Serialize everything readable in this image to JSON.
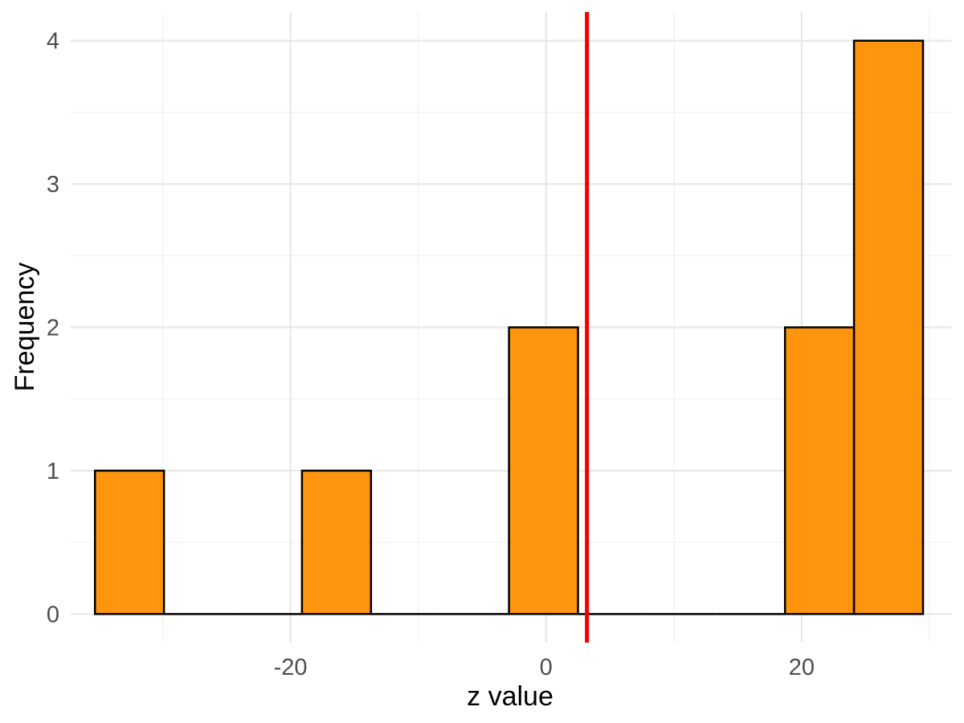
{
  "chart_data": {
    "type": "bar",
    "histogram": true,
    "xlabel": "z value",
    "ylabel": "Frequency",
    "xlim": [
      -37.2,
      31.7
    ],
    "ylim": [
      -0.2,
      4.2
    ],
    "xticks": [
      -20,
      0,
      20
    ],
    "xtick_labels": [
      "-20",
      "0",
      "20"
    ],
    "yticks": [
      0,
      1,
      2,
      3,
      4
    ],
    "ytick_labels": [
      "0",
      "1",
      "2",
      "3",
      "4"
    ],
    "grid": true,
    "bins": [
      {
        "x0": -35.3,
        "x1": -29.9,
        "count": 1
      },
      {
        "x0": -29.9,
        "x1": -24.5,
        "count": 0
      },
      {
        "x0": -24.5,
        "x1": -19.1,
        "count": 0
      },
      {
        "x0": -19.1,
        "x1": -13.7,
        "count": 1
      },
      {
        "x0": -13.7,
        "x1": -8.3,
        "count": 0
      },
      {
        "x0": -8.3,
        "x1": -2.9,
        "count": 0
      },
      {
        "x0": -2.9,
        "x1": 2.5,
        "count": 2
      },
      {
        "x0": 2.5,
        "x1": 7.9,
        "count": 0
      },
      {
        "x0": 7.9,
        "x1": 13.3,
        "count": 0
      },
      {
        "x0": 13.3,
        "x1": 18.7,
        "count": 0
      },
      {
        "x0": 18.7,
        "x1": 24.1,
        "count": 2
      },
      {
        "x0": 24.1,
        "x1": 29.5,
        "count": 4
      }
    ],
    "vline": {
      "x": 3.2,
      "color": "#ee0000"
    },
    "colors": {
      "bar_fill": "#ff940e",
      "bar_stroke": "#000000",
      "grid_major": "#e6e6e6",
      "grid_minor": "#f0f0f0",
      "tick_text": "#4d4d4d",
      "title_text": "#000000"
    }
  }
}
